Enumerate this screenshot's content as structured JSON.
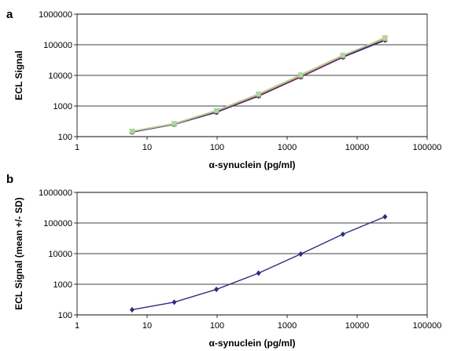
{
  "chart_data": [
    {
      "panel_label": "a",
      "type": "line",
      "xlabel": "α-synuclein (pg/ml)",
      "ylabel": "ECL Signal",
      "x_scale": "log",
      "y_scale": "log",
      "xlim": [
        1,
        100000
      ],
      "ylim": [
        100,
        1000000
      ],
      "x_ticks": [
        "1",
        "10",
        "100",
        "1000",
        "10000",
        "100000"
      ],
      "y_ticks": [
        "100",
        "1000",
        "10000",
        "100000",
        "1000000"
      ],
      "grid": "horizontal",
      "legend": "none",
      "series": [
        {
          "color": "#1f3c88",
          "marker": "diamond",
          "points": [
            [
              6.1,
              140
            ],
            [
              24.4,
              250
            ],
            [
              97.7,
              620
            ],
            [
              390.6,
              2100
            ],
            [
              1562.5,
              8800
            ],
            [
              6250,
              39000
            ],
            [
              25000,
              140000
            ]
          ]
        },
        {
          "color": "#8b1a1a",
          "marker": "square",
          "points": [
            [
              6.1,
              145
            ],
            [
              24.4,
              258
            ],
            [
              97.7,
              650
            ],
            [
              390.6,
              2200
            ],
            [
              1562.5,
              9200
            ],
            [
              6250,
              41000
            ],
            [
              25000,
              150000
            ]
          ]
        },
        {
          "color": "#6b8e23",
          "marker": "triangle",
          "points": [
            [
              6.1,
              148
            ],
            [
              24.4,
              262
            ],
            [
              97.7,
              680
            ],
            [
              390.6,
              2300
            ],
            [
              1562.5,
              9600
            ],
            [
              6250,
              43000
            ],
            [
              25000,
              158000
            ]
          ]
        },
        {
          "color": "#5b2c6f",
          "marker": "cross",
          "points": [
            [
              6.1,
              142
            ],
            [
              24.4,
              255
            ],
            [
              97.7,
              640
            ],
            [
              390.6,
              2150
            ],
            [
              1562.5,
              9000
            ],
            [
              6250,
              40000
            ],
            [
              25000,
              145000
            ]
          ]
        },
        {
          "color": "#1fa3c4",
          "marker": "x",
          "points": [
            [
              6.1,
              150
            ],
            [
              24.4,
              266
            ],
            [
              97.7,
              700
            ],
            [
              390.6,
              2400
            ],
            [
              1562.5,
              10000
            ],
            [
              6250,
              44000
            ],
            [
              25000,
              165000
            ]
          ]
        },
        {
          "color": "#f4a460",
          "marker": "circle",
          "points": [
            [
              6.1,
              147
            ],
            [
              24.4,
              260
            ],
            [
              97.7,
              690
            ],
            [
              390.6,
              2350
            ],
            [
              1562.5,
              9800
            ],
            [
              6250,
              43500
            ],
            [
              25000,
              172000
            ]
          ]
        },
        {
          "color": "#a8d8a0",
          "marker": "square",
          "points": [
            [
              6.1,
              152
            ],
            [
              24.4,
              270
            ],
            [
              97.7,
              720
            ],
            [
              390.6,
              2500
            ],
            [
              1562.5,
              10500
            ],
            [
              6250,
              46000
            ],
            [
              25000,
              160000
            ]
          ]
        }
      ]
    },
    {
      "panel_label": "b",
      "type": "line",
      "xlabel": "α-synuclein (pg/ml)",
      "ylabel": "ECL Signal (mean +/- SD)",
      "x_scale": "log",
      "y_scale": "log",
      "xlim": [
        1,
        100000
      ],
      "ylim": [
        100,
        1000000
      ],
      "x_ticks": [
        "1",
        "10",
        "100",
        "1000",
        "10000",
        "100000"
      ],
      "y_ticks": [
        "100",
        "1000",
        "10000",
        "100000",
        "1000000"
      ],
      "grid": "horizontal",
      "legend": "none",
      "series": [
        {
          "color": "#2b2d7c",
          "marker": "diamond",
          "points": [
            [
              6.1,
              147
            ],
            [
              24.4,
              260
            ],
            [
              97.7,
              680
            ],
            [
              390.6,
              2300
            ],
            [
              1562.5,
              9700
            ],
            [
              6250,
              43000
            ],
            [
              25000,
              160000
            ]
          ]
        }
      ]
    }
  ]
}
